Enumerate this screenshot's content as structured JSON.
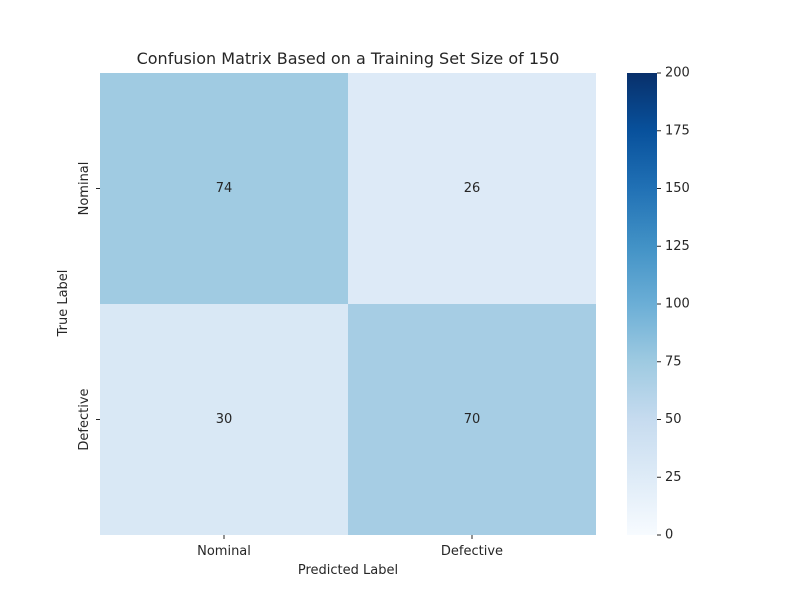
{
  "chart_data": {
    "type": "heatmap",
    "title": "Confusion Matrix Based on a Training Set Size of 150",
    "xlabel": "Predicted Label",
    "ylabel": "True Label",
    "x_categories": [
      "Nominal",
      "Defective"
    ],
    "y_categories": [
      "Nominal",
      "Defective"
    ],
    "values": [
      [
        74,
        26
      ],
      [
        30,
        70
      ]
    ],
    "color_range": [
      0,
      200
    ],
    "colorbar_ticks": [
      0,
      25,
      50,
      75,
      100,
      125,
      150,
      175,
      200
    ],
    "colormap": "Blues",
    "grid": false,
    "legend": "colorbar-right"
  }
}
